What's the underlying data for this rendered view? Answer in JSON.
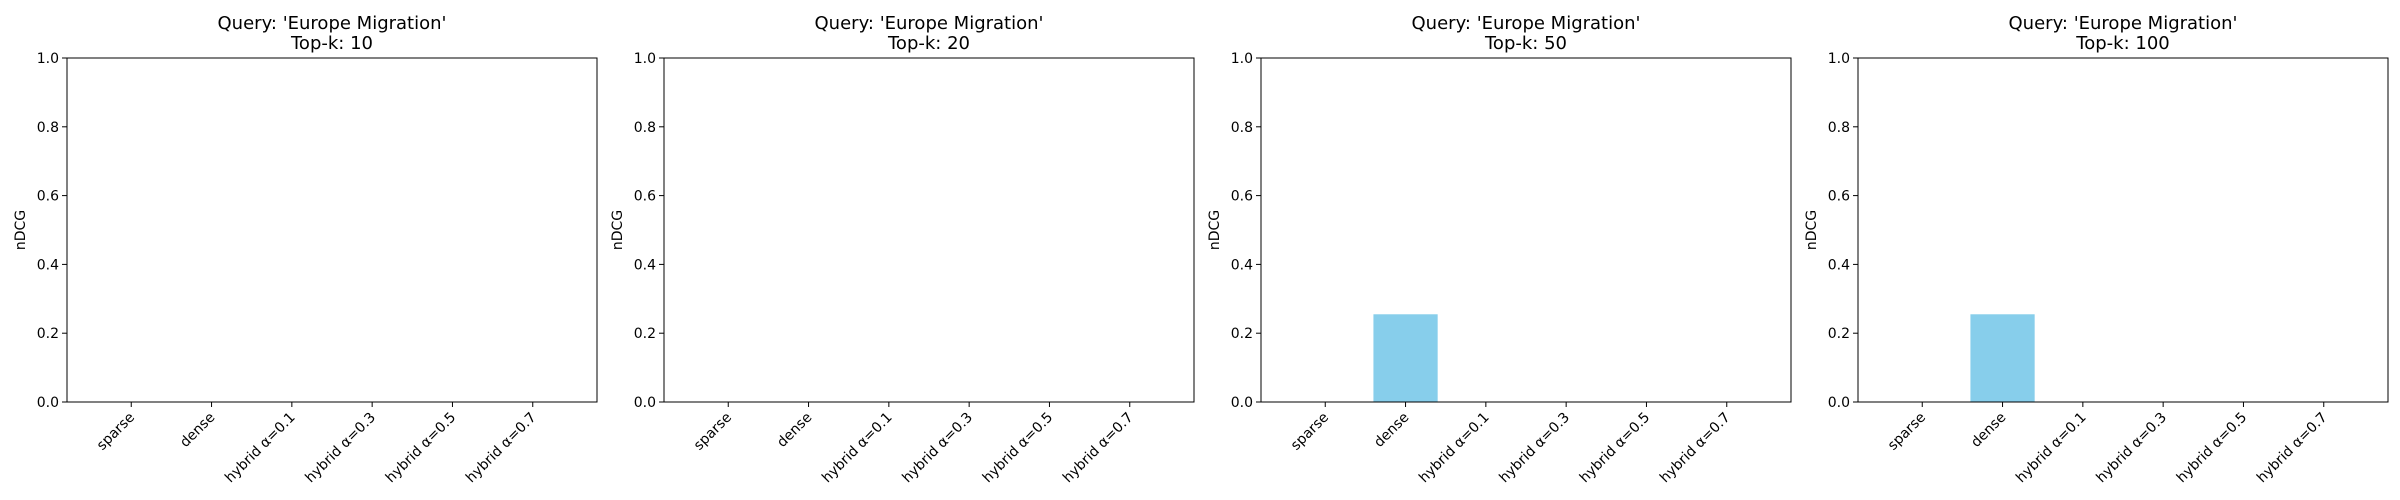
{
  "chart_data": [
    {
      "type": "bar",
      "title_line1": "Query: 'Europe Migration'",
      "title_line2": "Top-k: 10",
      "ylabel": "nDCG",
      "ylim": [
        0,
        1
      ],
      "yticks": [
        "0.0",
        "0.2",
        "0.4",
        "0.6",
        "0.8",
        "1.0"
      ],
      "categories": [
        "sparse",
        "dense",
        "hybrid α=0.1",
        "hybrid α=0.3",
        "hybrid α=0.5",
        "hybrid α=0.7"
      ],
      "values": [
        0,
        0,
        0,
        0,
        0,
        0
      ],
      "bar_color": "#87ceeb",
      "grid": false
    },
    {
      "type": "bar",
      "title_line1": "Query: 'Europe Migration'",
      "title_line2": "Top-k: 20",
      "ylabel": "nDCG",
      "ylim": [
        0,
        1
      ],
      "yticks": [
        "0.0",
        "0.2",
        "0.4",
        "0.6",
        "0.8",
        "1.0"
      ],
      "categories": [
        "sparse",
        "dense",
        "hybrid α=0.1",
        "hybrid α=0.3",
        "hybrid α=0.5",
        "hybrid α=0.7"
      ],
      "values": [
        0,
        0,
        0,
        0,
        0,
        0
      ],
      "bar_color": "#87ceeb",
      "grid": false
    },
    {
      "type": "bar",
      "title_line1": "Query: 'Europe Migration'",
      "title_line2": "Top-k: 50",
      "ylabel": "nDCG",
      "ylim": [
        0,
        1
      ],
      "yticks": [
        "0.0",
        "0.2",
        "0.4",
        "0.6",
        "0.8",
        "1.0"
      ],
      "categories": [
        "sparse",
        "dense",
        "hybrid α=0.1",
        "hybrid α=0.3",
        "hybrid α=0.5",
        "hybrid α=0.7"
      ],
      "values": [
        0,
        0.255,
        0,
        0,
        0,
        0
      ],
      "bar_color": "#87ceeb",
      "grid": false
    },
    {
      "type": "bar",
      "title_line1": "Query: 'Europe Migration'",
      "title_line2": "Top-k: 100",
      "ylabel": "nDCG",
      "ylim": [
        0,
        1
      ],
      "yticks": [
        "0.0",
        "0.2",
        "0.4",
        "0.6",
        "0.8",
        "1.0"
      ],
      "categories": [
        "sparse",
        "dense",
        "hybrid α=0.1",
        "hybrid α=0.3",
        "hybrid α=0.5",
        "hybrid α=0.7"
      ],
      "values": [
        0,
        0.255,
        0,
        0,
        0,
        0
      ],
      "bar_color": "#87ceeb",
      "grid": false
    }
  ]
}
